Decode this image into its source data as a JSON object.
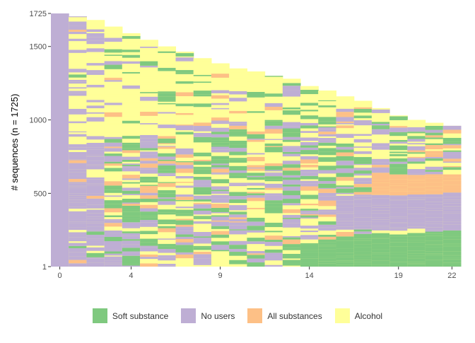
{
  "chart_data": {
    "type": "area",
    "subtype": "sequence index plot",
    "ylabel": "# sequences (n = 1725)",
    "xlabel": "",
    "x_ticks": [
      "0",
      "4",
      "9",
      "14",
      "19",
      "22"
    ],
    "y_ticks": [
      "1",
      "500",
      "1000",
      "1500",
      "1725"
    ],
    "xlim": [
      0,
      22
    ],
    "ylim": [
      1,
      1725
    ],
    "legend_position": "bottom",
    "grid": false,
    "states": [
      {
        "name": "Soft substance",
        "color": "#7FC97F"
      },
      {
        "name": "No users",
        "color": "#BEAED4"
      },
      {
        "name": "All substances",
        "color": "#FDC086"
      },
      {
        "name": "Alcohol",
        "color": "#FFFF99"
      }
    ],
    "sequences_observed_at_time": [
      1725,
      1705,
      1680,
      1635,
      1590,
      1545,
      1500,
      1465,
      1420,
      1385,
      1350,
      1330,
      1300,
      1280,
      1230,
      1200,
      1160,
      1130,
      1080,
      1030,
      1000,
      980,
      960
    ],
    "final_time_band_ranges": [
      {
        "state": "Soft substance",
        "from": 1,
        "to": 245
      },
      {
        "state": "No users",
        "from": 245,
        "to": 480
      },
      {
        "state": "All substances",
        "from": 480,
        "to": 625
      },
      {
        "state": "Alcohol",
        "from": 625,
        "to": 1725
      }
    ]
  }
}
